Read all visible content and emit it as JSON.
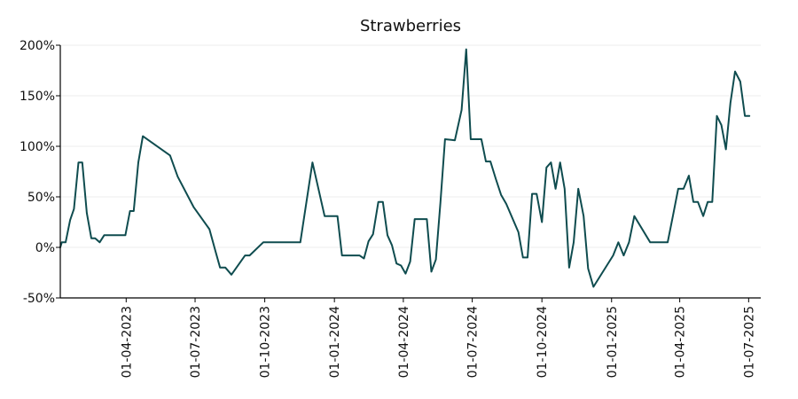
{
  "chart_data": {
    "type": "line",
    "title": "Strawberries",
    "xlabel": "",
    "ylabel": "",
    "ylim": [
      -50,
      200
    ],
    "xlim": [
      "2023-01-04",
      "2025-07-17"
    ],
    "grid": "horizontal",
    "legend": "none",
    "colors": {
      "line": "#0f4c4f",
      "grid": "#eeeeee",
      "axis": "#000000"
    },
    "y_ticks": [
      {
        "value": -50,
        "label": "-50%"
      },
      {
        "value": 0,
        "label": "0%"
      },
      {
        "value": 50,
        "label": "50%"
      },
      {
        "value": 100,
        "label": "100%"
      },
      {
        "value": 150,
        "label": "150%"
      },
      {
        "value": 200,
        "label": "200%"
      }
    ],
    "x_ticks": [
      {
        "date": "2023-04-01",
        "label": "01-04-2023"
      },
      {
        "date": "2023-07-01",
        "label": "01-07-2023"
      },
      {
        "date": "2023-10-01",
        "label": "01-10-2023"
      },
      {
        "date": "2024-01-01",
        "label": "01-01-2024"
      },
      {
        "date": "2024-04-01",
        "label": "01-04-2024"
      },
      {
        "date": "2024-07-01",
        "label": "01-07-2024"
      },
      {
        "date": "2024-10-01",
        "label": "01-10-2024"
      },
      {
        "date": "2025-01-01",
        "label": "01-01-2025"
      },
      {
        "date": "2025-04-01",
        "label": "01-04-2025"
      },
      {
        "date": "2025-07-01",
        "label": "01-07-2025"
      }
    ],
    "series": [
      {
        "values": [
          {
            "x": "2023-01-04",
            "y": 0
          },
          {
            "x": "2023-01-06",
            "y": 5
          },
          {
            "x": "2023-01-11",
            "y": 5
          },
          {
            "x": "2023-01-17",
            "y": 27
          },
          {
            "x": "2023-01-22",
            "y": 38
          },
          {
            "x": "2023-01-28",
            "y": 84
          },
          {
            "x": "2023-02-02",
            "y": 84
          },
          {
            "x": "2023-02-08",
            "y": 34
          },
          {
            "x": "2023-02-14",
            "y": 9
          },
          {
            "x": "2023-02-19",
            "y": 9
          },
          {
            "x": "2023-02-25",
            "y": 5
          },
          {
            "x": "2023-03-03",
            "y": 12
          },
          {
            "x": "2023-03-31",
            "y": 12
          },
          {
            "x": "2023-04-06",
            "y": 36
          },
          {
            "x": "2023-04-11",
            "y": 36
          },
          {
            "x": "2023-04-17",
            "y": 84
          },
          {
            "x": "2023-04-23",
            "y": 110
          },
          {
            "x": "2023-05-29",
            "y": 91
          },
          {
            "x": "2023-06-08",
            "y": 70
          },
          {
            "x": "2023-06-29",
            "y": 40
          },
          {
            "x": "2023-07-20",
            "y": 18
          },
          {
            "x": "2023-07-28",
            "y": -4
          },
          {
            "x": "2023-08-03",
            "y": -20
          },
          {
            "x": "2023-08-10",
            "y": -20
          },
          {
            "x": "2023-08-18",
            "y": -27
          },
          {
            "x": "2023-09-05",
            "y": -8
          },
          {
            "x": "2023-09-11",
            "y": -8
          },
          {
            "x": "2023-09-29",
            "y": 5
          },
          {
            "x": "2023-11-17",
            "y": 5
          },
          {
            "x": "2023-12-03",
            "y": 84
          },
          {
            "x": "2023-12-19",
            "y": 31
          },
          {
            "x": "2024-01-05",
            "y": 31
          },
          {
            "x": "2024-01-11",
            "y": -8
          },
          {
            "x": "2024-02-03",
            "y": -8
          },
          {
            "x": "2024-02-09",
            "y": -11
          },
          {
            "x": "2024-02-15",
            "y": 6
          },
          {
            "x": "2024-02-21",
            "y": 13
          },
          {
            "x": "2024-02-28",
            "y": 45
          },
          {
            "x": "2024-03-05",
            "y": 45
          },
          {
            "x": "2024-03-11",
            "y": 12
          },
          {
            "x": "2024-03-17",
            "y": 2
          },
          {
            "x": "2024-03-23",
            "y": -16
          },
          {
            "x": "2024-03-29",
            "y": -18
          },
          {
            "x": "2024-04-04",
            "y": -26
          },
          {
            "x": "2024-04-10",
            "y": -14
          },
          {
            "x": "2024-04-16",
            "y": 28
          },
          {
            "x": "2024-05-02",
            "y": 28
          },
          {
            "x": "2024-05-08",
            "y": -24
          },
          {
            "x": "2024-05-14",
            "y": -12
          },
          {
            "x": "2024-05-20",
            "y": 44
          },
          {
            "x": "2024-05-26",
            "y": 107
          },
          {
            "x": "2024-06-08",
            "y": 106
          },
          {
            "x": "2024-06-17",
            "y": 136
          },
          {
            "x": "2024-06-23",
            "y": 196
          },
          {
            "x": "2024-06-29",
            "y": 107
          },
          {
            "x": "2024-07-13",
            "y": 107
          },
          {
            "x": "2024-07-19",
            "y": 85
          },
          {
            "x": "2024-07-25",
            "y": 85
          },
          {
            "x": "2024-08-01",
            "y": 68
          },
          {
            "x": "2024-08-08",
            "y": 52
          },
          {
            "x": "2024-08-15",
            "y": 43
          },
          {
            "x": "2024-08-31",
            "y": 15
          },
          {
            "x": "2024-09-06",
            "y": -10
          },
          {
            "x": "2024-09-12",
            "y": -10
          },
          {
            "x": "2024-09-18",
            "y": 53
          },
          {
            "x": "2024-09-24",
            "y": 53
          },
          {
            "x": "2024-10-01",
            "y": 25
          },
          {
            "x": "2024-10-07",
            "y": 79
          },
          {
            "x": "2024-10-13",
            "y": 84
          },
          {
            "x": "2024-10-19",
            "y": 58
          },
          {
            "x": "2024-10-25",
            "y": 84
          },
          {
            "x": "2024-10-31",
            "y": 58
          },
          {
            "x": "2024-11-06",
            "y": -20
          },
          {
            "x": "2024-11-12",
            "y": 5
          },
          {
            "x": "2024-11-18",
            "y": 58
          },
          {
            "x": "2024-11-25",
            "y": 31
          },
          {
            "x": "2024-12-01",
            "y": -21
          },
          {
            "x": "2024-12-08",
            "y": -39
          },
          {
            "x": "2025-01-03",
            "y": -8
          },
          {
            "x": "2025-01-10",
            "y": 5
          },
          {
            "x": "2025-01-17",
            "y": -8
          },
          {
            "x": "2025-01-24",
            "y": 5
          },
          {
            "x": "2025-01-31",
            "y": 31
          },
          {
            "x": "2025-02-21",
            "y": 5
          },
          {
            "x": "2025-03-16",
            "y": 5
          },
          {
            "x": "2025-03-23",
            "y": 31
          },
          {
            "x": "2025-03-30",
            "y": 58
          },
          {
            "x": "2025-04-06",
            "y": 58
          },
          {
            "x": "2025-04-13",
            "y": 71
          },
          {
            "x": "2025-04-19",
            "y": 45
          },
          {
            "x": "2025-04-25",
            "y": 45
          },
          {
            "x": "2025-05-02",
            "y": 31
          },
          {
            "x": "2025-05-08",
            "y": 45
          },
          {
            "x": "2025-05-14",
            "y": 45
          },
          {
            "x": "2025-05-20",
            "y": 130
          },
          {
            "x": "2025-05-26",
            "y": 121
          },
          {
            "x": "2025-06-01",
            "y": 97
          },
          {
            "x": "2025-06-07",
            "y": 143
          },
          {
            "x": "2025-06-13",
            "y": 174
          },
          {
            "x": "2025-06-20",
            "y": 164
          },
          {
            "x": "2025-06-26",
            "y": 130
          },
          {
            "x": "2025-07-02",
            "y": 130
          }
        ]
      }
    ]
  }
}
